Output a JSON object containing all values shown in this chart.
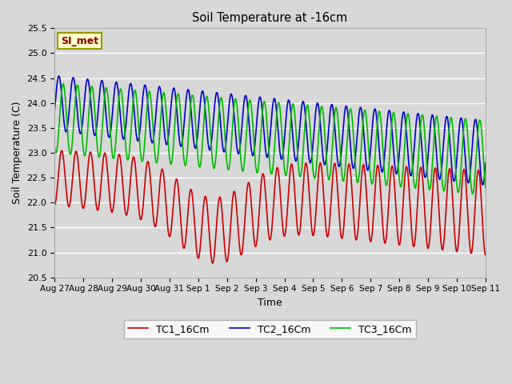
{
  "title": "Soil Temperature at -16cm",
  "xlabel": "Time",
  "ylabel": "Soil Temperature (C)",
  "ylim": [
    20.5,
    25.5
  ],
  "background_color": "#d8d8d8",
  "plot_bg_color": "#d8d8d8",
  "grid_color": "white",
  "series": [
    {
      "label": "TC1_16Cm",
      "color": "#cc0000",
      "linewidth": 1.2
    },
    {
      "label": "TC2_16Cm",
      "color": "#0000cc",
      "linewidth": 1.2
    },
    {
      "label": "TC3_16Cm",
      "color": "#00bb00",
      "linewidth": 1.2
    }
  ],
  "xtick_labels": [
    "Aug 27",
    "Aug 28",
    "Aug 29",
    "Aug 30",
    "Aug 31",
    "Sep 1",
    "Sep 2",
    "Sep 3",
    "Sep 4",
    "Sep 5",
    "Sep 6",
    "Sep 7",
    "Sep 8",
    "Sep 9",
    "Sep 10",
    "Sep 11"
  ],
  "ytick_values": [
    20.5,
    21.0,
    21.5,
    22.0,
    22.5,
    23.0,
    23.5,
    24.0,
    24.5,
    25.0,
    25.5
  ],
  "si_met_label": "SI_met",
  "si_met_color": "#8b0000",
  "si_met_bg": "#ffffcc",
  "si_met_border": "#999900"
}
